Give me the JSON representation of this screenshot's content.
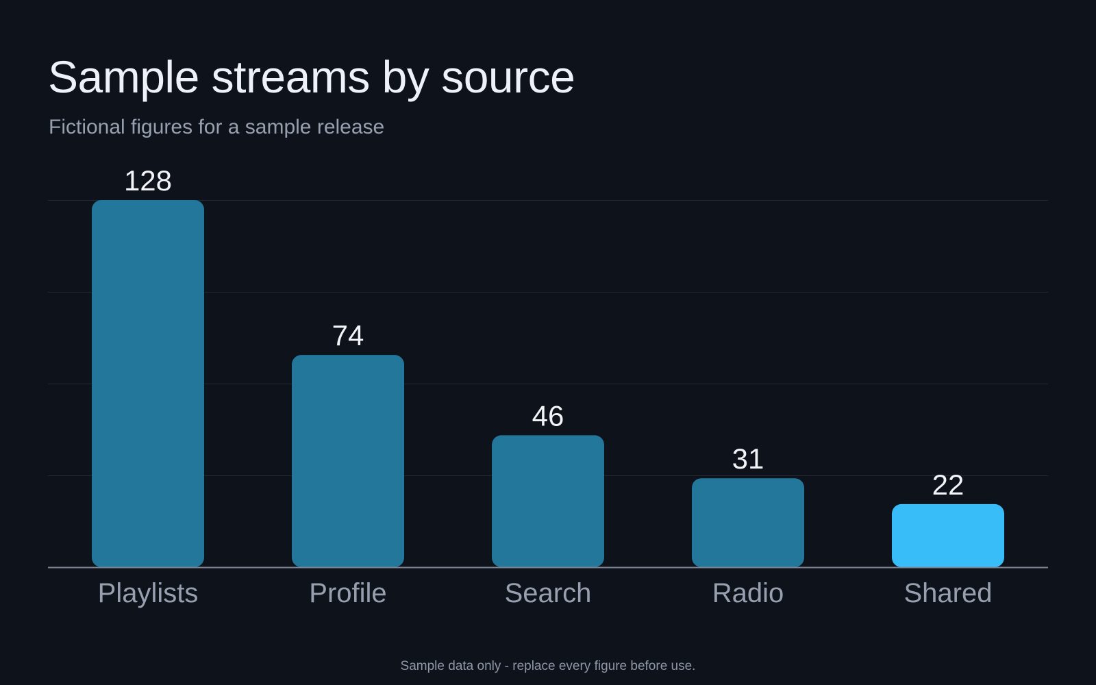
{
  "header": {
    "title": "Sample streams by source",
    "subtitle": "Fictional figures for a sample release"
  },
  "footnote": "Sample data only - replace every figure before use.",
  "colors": {
    "background": "#0e121b",
    "bar": "#23779b",
    "bar_highlight": "#38bdf8",
    "gridline": "#232a36",
    "baseline": "#7d8594",
    "value_label": "#f2f4f8",
    "category_label": "#98a0b0"
  },
  "chart_data": {
    "type": "bar",
    "title": "Sample streams by source",
    "subtitle": "Fictional figures for a sample release",
    "categories": [
      "Playlists",
      "Profile",
      "Search",
      "Radio",
      "Shared"
    ],
    "values": [
      128,
      74,
      46,
      31,
      22
    ],
    "highlight_category": "Shared",
    "xlabel": "",
    "ylabel": "",
    "ylim": [
      0,
      128
    ],
    "grid": true,
    "y_axis_labels": false,
    "data_labels": true,
    "legend": "none"
  }
}
